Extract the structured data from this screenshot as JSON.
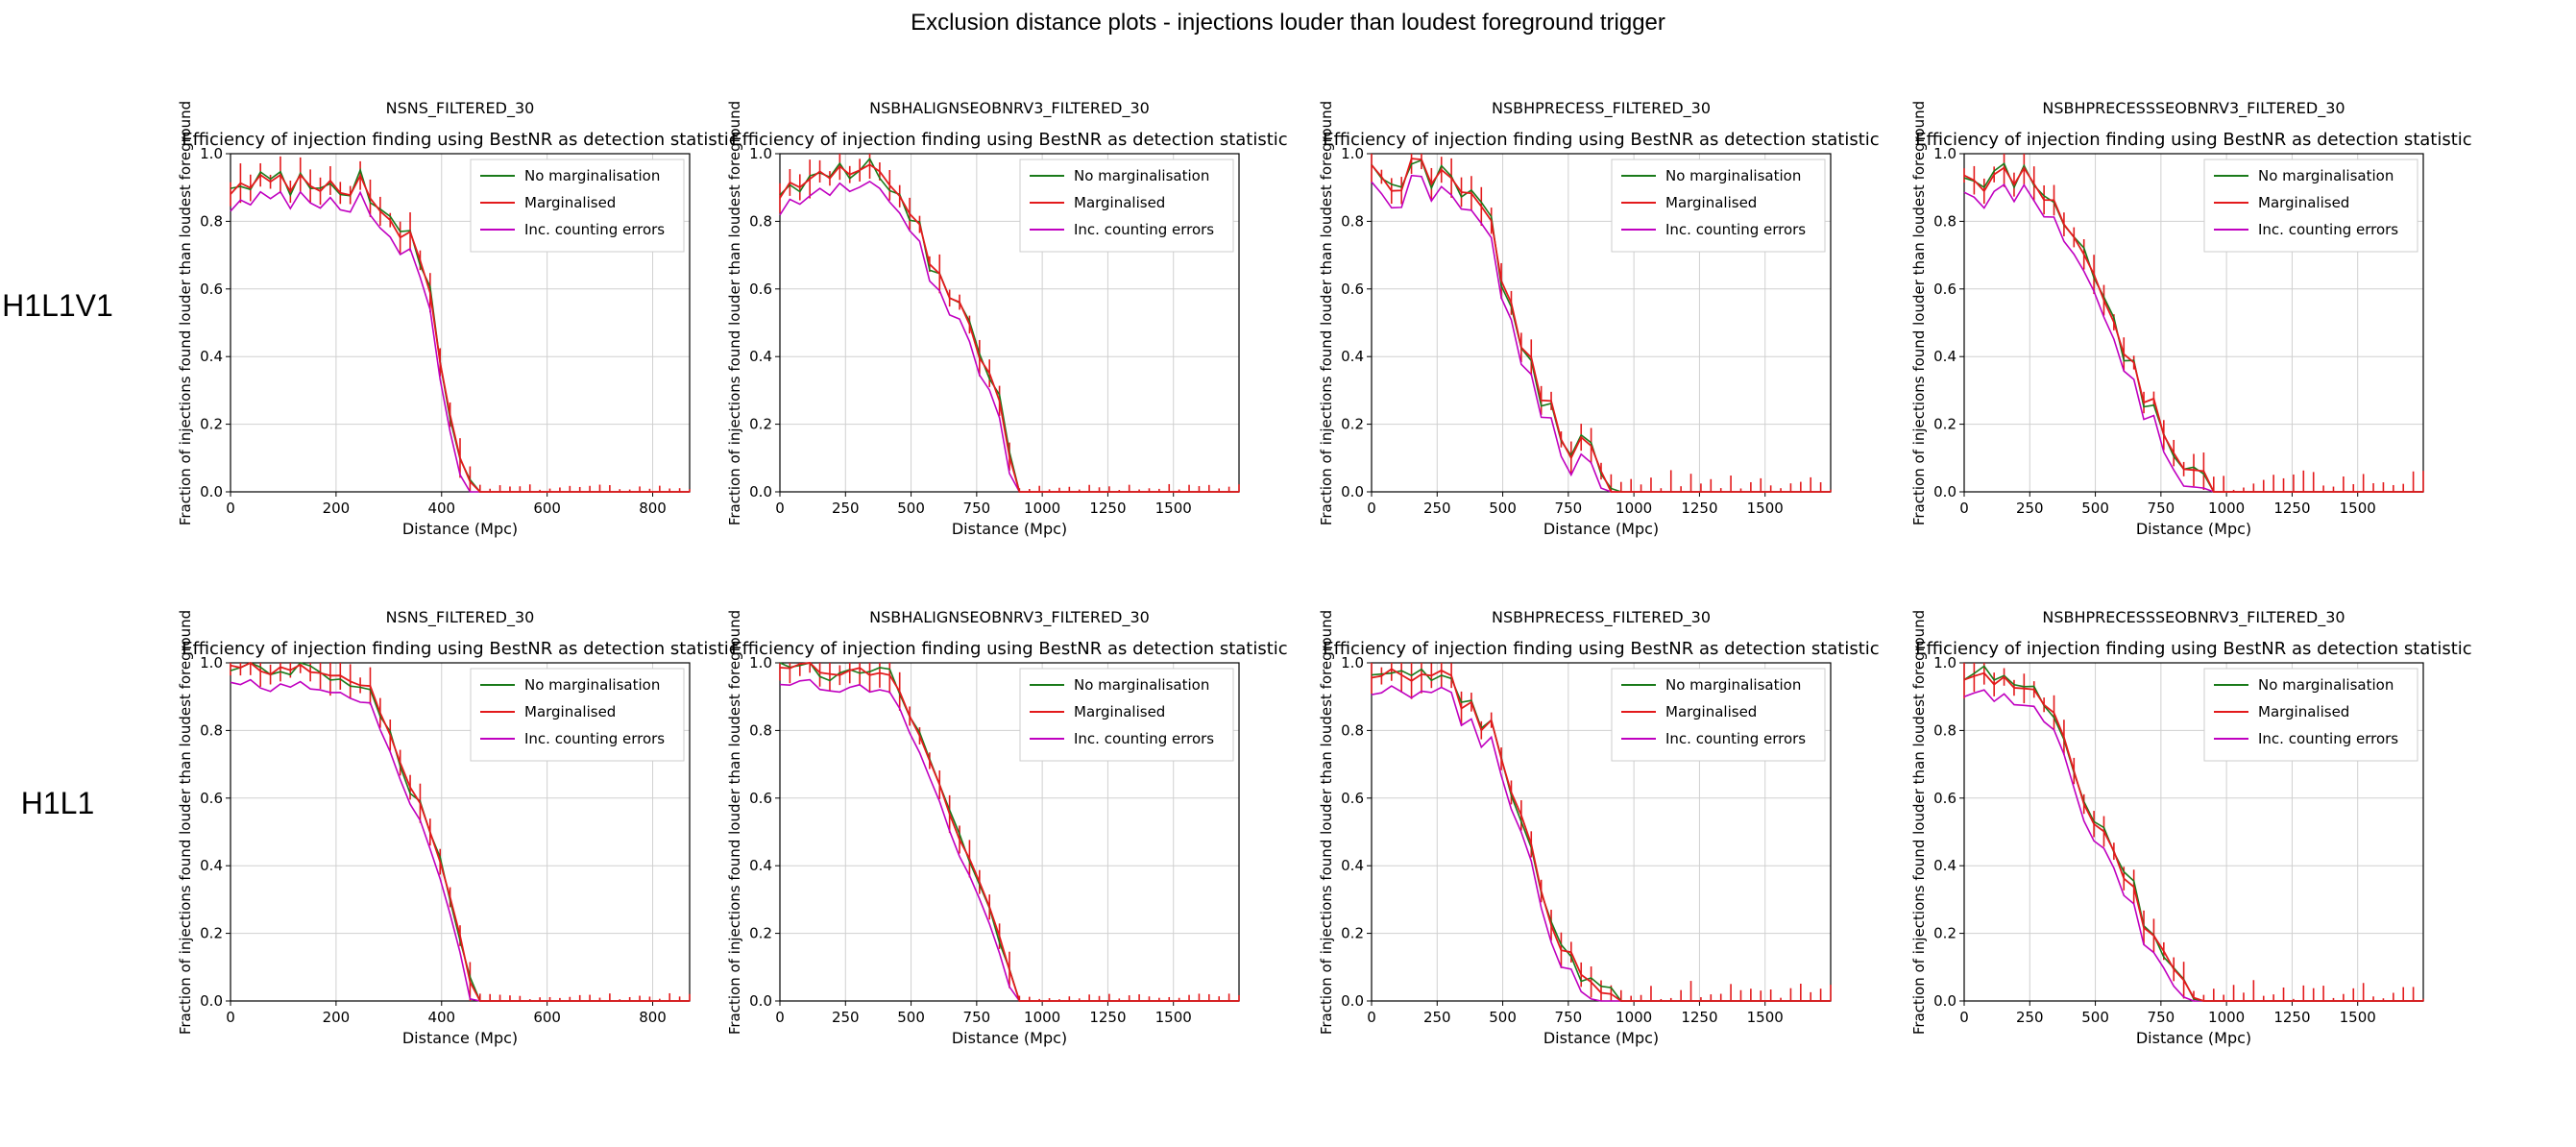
{
  "page_title": "Exclusion distance plots - injections louder than loudest foreground trigger",
  "row_labels": [
    "H1L1V1",
    "H1L1"
  ],
  "plot_subtitle": "Efficiency of injection finding using BestNR as detection statistic",
  "ylabel": "Fraction of injections found louder than loudest foreground",
  "xlabel": "Distance (Mpc)",
  "legend": [
    "No marginalisation",
    "Marginalised",
    "Inc. counting errors"
  ],
  "colors": {
    "no_marg": "#1a7a1a",
    "marg": "#e31a1c",
    "counting": "#c000c0",
    "grid": "#d0d0d0"
  },
  "chart_data": [
    {
      "type": "line",
      "panel_title": "NSNS_FILTERED_30",
      "grid": true,
      "legend_position": "top-right",
      "xlim": [
        0,
        870
      ],
      "ylim": [
        0,
        1
      ],
      "xticks": [
        0,
        200,
        400,
        600,
        800
      ],
      "yticks": [
        0.0,
        0.2,
        0.4,
        0.6,
        0.8,
        1.0
      ],
      "curve": {
        "x": [
          0,
          200,
          260,
          300,
          340,
          380,
          410,
          440,
          460,
          870
        ],
        "y": [
          0.9,
          0.92,
          0.9,
          0.82,
          0.75,
          0.55,
          0.3,
          0.1,
          0.0,
          0.0
        ]
      },
      "noise": 0.035,
      "err_max": 0.03
    },
    {
      "type": "line",
      "panel_title": "NSBHALIGNSEOBNRV3_FILTERED_30",
      "grid": true,
      "legend_position": "top-right",
      "xlim": [
        0,
        1750
      ],
      "ylim": [
        0,
        1
      ],
      "xticks": [
        0,
        250,
        500,
        750,
        1000,
        1250,
        1500
      ],
      "yticks": [
        0.0,
        0.2,
        0.4,
        0.6,
        0.8,
        1.0
      ],
      "curve": {
        "x": [
          0,
          250,
          400,
          500,
          550,
          650,
          750,
          850,
          900,
          1750
        ],
        "y": [
          0.9,
          0.95,
          0.93,
          0.85,
          0.72,
          0.58,
          0.45,
          0.25,
          0.0,
          0.0
        ]
      },
      "noise": 0.035,
      "err_max": 0.03
    },
    {
      "type": "line",
      "panel_title": "NSBHPRECESS_FILTERED_30",
      "grid": true,
      "legend_position": "top-right",
      "xlim": [
        0,
        1750
      ],
      "ylim": [
        0,
        1
      ],
      "xticks": [
        0,
        250,
        500,
        750,
        1000,
        1250,
        1500
      ],
      "yticks": [
        0.0,
        0.2,
        0.4,
        0.6,
        0.8,
        1.0
      ],
      "curve": {
        "x": [
          0,
          200,
          350,
          450,
          550,
          650,
          750,
          850,
          950,
          1750
        ],
        "y": [
          0.92,
          0.95,
          0.85,
          0.8,
          0.5,
          0.25,
          0.15,
          0.1,
          0.0,
          0.0
        ]
      },
      "noise": 0.06,
      "err_max": 0.1
    },
    {
      "type": "line",
      "panel_title": "NSBHPRECESSSEOBNRV3_FILTERED_30",
      "grid": true,
      "legend_position": "top-right",
      "xlim": [
        0,
        1750
      ],
      "ylim": [
        0,
        1
      ],
      "xticks": [
        0,
        250,
        500,
        750,
        1000,
        1250,
        1500
      ],
      "yticks": [
        0.0,
        0.2,
        0.4,
        0.6,
        0.8,
        1.0
      ],
      "curve": {
        "x": [
          0,
          250,
          350,
          450,
          550,
          650,
          750,
          850,
          950,
          1750
        ],
        "y": [
          0.92,
          0.93,
          0.85,
          0.75,
          0.55,
          0.35,
          0.2,
          0.08,
          0.0,
          0.0
        ]
      },
      "noise": 0.035,
      "err_max": 0.1
    },
    {
      "type": "line",
      "panel_title": "NSNS_FILTERED_30",
      "grid": true,
      "legend_position": "top-right",
      "xlim": [
        0,
        870
      ],
      "ylim": [
        0,
        1
      ],
      "xticks": [
        0,
        200,
        400,
        600,
        800
      ],
      "yticks": [
        0.0,
        0.2,
        0.4,
        0.6,
        0.8,
        1.0
      ],
      "curve": {
        "x": [
          0,
          200,
          260,
          300,
          340,
          380,
          410,
          440,
          460,
          870
        ],
        "y": [
          0.99,
          0.97,
          0.93,
          0.8,
          0.65,
          0.5,
          0.35,
          0.15,
          0.0,
          0.0
        ]
      },
      "noise": 0.02,
      "err_max": 0.03
    },
    {
      "type": "line",
      "panel_title": "NSBHALIGNSEOBNRV3_FILTERED_30",
      "grid": true,
      "legend_position": "top-right",
      "xlim": [
        0,
        1750
      ],
      "ylim": [
        0,
        1
      ],
      "xticks": [
        0,
        250,
        500,
        750,
        1000,
        1250,
        1500
      ],
      "yticks": [
        0.0,
        0.2,
        0.4,
        0.6,
        0.8,
        1.0
      ],
      "curve": {
        "x": [
          0,
          250,
          400,
          450,
          550,
          650,
          750,
          850,
          900,
          1750
        ],
        "y": [
          0.99,
          0.98,
          0.97,
          0.92,
          0.75,
          0.55,
          0.38,
          0.15,
          0.0,
          0.0
        ]
      },
      "noise": 0.02,
      "err_max": 0.03
    },
    {
      "type": "line",
      "panel_title": "NSBHPRECESS_FILTERED_30",
      "grid": true,
      "legend_position": "top-right",
      "xlim": [
        0,
        1750
      ],
      "ylim": [
        0,
        1
      ],
      "xticks": [
        0,
        250,
        500,
        750,
        1000,
        1250,
        1500
      ],
      "yticks": [
        0.0,
        0.2,
        0.4,
        0.6,
        0.8,
        1.0
      ],
      "curve": {
        "x": [
          0,
          200,
          350,
          450,
          550,
          650,
          750,
          850,
          950,
          1750
        ],
        "y": [
          0.98,
          0.96,
          0.9,
          0.8,
          0.6,
          0.3,
          0.15,
          0.08,
          0.0,
          0.0
        ]
      },
      "noise": 0.045,
      "err_max": 0.1
    },
    {
      "type": "line",
      "panel_title": "NSBHPRECESSSEOBNRV3_FILTERED_30",
      "grid": true,
      "legend_position": "top-right",
      "xlim": [
        0,
        1750
      ],
      "ylim": [
        0,
        1
      ],
      "xticks": [
        0,
        250,
        500,
        750,
        1000,
        1250,
        1500
      ],
      "yticks": [
        0.0,
        0.2,
        0.4,
        0.6,
        0.8,
        1.0
      ],
      "curve": {
        "x": [
          0,
          200,
          300,
          400,
          500,
          600,
          700,
          800,
          900,
          1750
        ],
        "y": [
          0.98,
          0.96,
          0.9,
          0.72,
          0.5,
          0.4,
          0.2,
          0.1,
          0.0,
          0.0
        ]
      },
      "noise": 0.035,
      "err_max": 0.1
    }
  ]
}
